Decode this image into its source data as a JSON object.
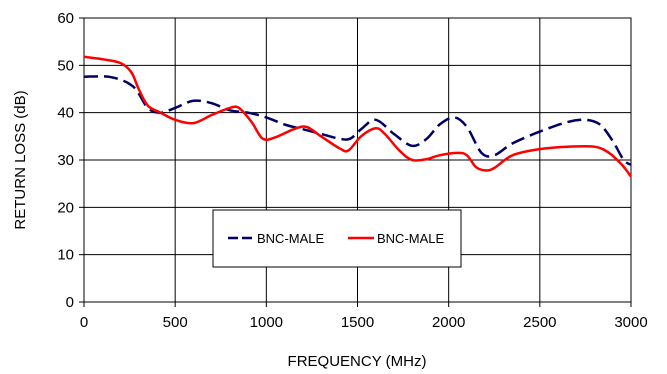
{
  "chart_data": {
    "type": "line",
    "xlabel": "FREQUENCY (MHz)",
    "ylabel": "RETURN LOSS (dB)",
    "xlim": [
      0,
      3000
    ],
    "ylim": [
      0,
      60
    ],
    "xticks": [
      "0",
      "500",
      "1000",
      "1500",
      "2000",
      "2500",
      "3000"
    ],
    "yticks": [
      "0",
      "10",
      "20",
      "30",
      "40",
      "50",
      "60"
    ],
    "grid": true,
    "legend_position": "lower-center",
    "series": [
      {
        "name": "BNC-MALE",
        "color": "#000066",
        "style": "dashed",
        "points": [
          [
            0,
            47.6
          ],
          [
            150,
            47.5
          ],
          [
            270,
            45.5
          ],
          [
            350,
            41
          ],
          [
            420,
            40
          ],
          [
            500,
            41
          ],
          [
            600,
            42.5
          ],
          [
            700,
            42
          ],
          [
            800,
            40.5
          ],
          [
            900,
            40
          ],
          [
            1000,
            39
          ],
          [
            1100,
            37.5
          ],
          [
            1200,
            36.5
          ],
          [
            1300,
            35.5
          ],
          [
            1400,
            34.5
          ],
          [
            1460,
            34.5
          ],
          [
            1520,
            36.5
          ],
          [
            1600,
            38.5
          ],
          [
            1700,
            35.5
          ],
          [
            1800,
            33
          ],
          [
            1880,
            34.5
          ],
          [
            1950,
            37.5
          ],
          [
            2030,
            39
          ],
          [
            2100,
            37
          ],
          [
            2180,
            31.5
          ],
          [
            2250,
            31
          ],
          [
            2350,
            33.5
          ],
          [
            2500,
            36
          ],
          [
            2650,
            38
          ],
          [
            2750,
            38.5
          ],
          [
            2830,
            37.5
          ],
          [
            2900,
            34
          ],
          [
            2960,
            30
          ],
          [
            3000,
            29
          ]
        ]
      },
      {
        "name": "BNC-MALE",
        "color": "#ff0000",
        "style": "solid",
        "points": [
          [
            0,
            51.8
          ],
          [
            100,
            51.3
          ],
          [
            200,
            50.5
          ],
          [
            260,
            48.5
          ],
          [
            300,
            45
          ],
          [
            350,
            41.5
          ],
          [
            420,
            40
          ],
          [
            500,
            38.5
          ],
          [
            600,
            37.8
          ],
          [
            700,
            39.5
          ],
          [
            800,
            41
          ],
          [
            850,
            41
          ],
          [
            920,
            38
          ],
          [
            980,
            34.5
          ],
          [
            1050,
            34.8
          ],
          [
            1150,
            36.5
          ],
          [
            1220,
            37
          ],
          [
            1300,
            35
          ],
          [
            1400,
            32.5
          ],
          [
            1450,
            32
          ],
          [
            1520,
            35
          ],
          [
            1600,
            36.7
          ],
          [
            1650,
            35.5
          ],
          [
            1730,
            32
          ],
          [
            1800,
            30
          ],
          [
            1880,
            30.2
          ],
          [
            1950,
            31
          ],
          [
            2050,
            31.5
          ],
          [
            2100,
            31
          ],
          [
            2150,
            28.5
          ],
          [
            2200,
            27.8
          ],
          [
            2250,
            28.3
          ],
          [
            2350,
            31
          ],
          [
            2500,
            32.3
          ],
          [
            2650,
            32.8
          ],
          [
            2800,
            32.8
          ],
          [
            2880,
            31.5
          ],
          [
            2950,
            29
          ],
          [
            3000,
            26.5
          ]
        ]
      }
    ]
  }
}
